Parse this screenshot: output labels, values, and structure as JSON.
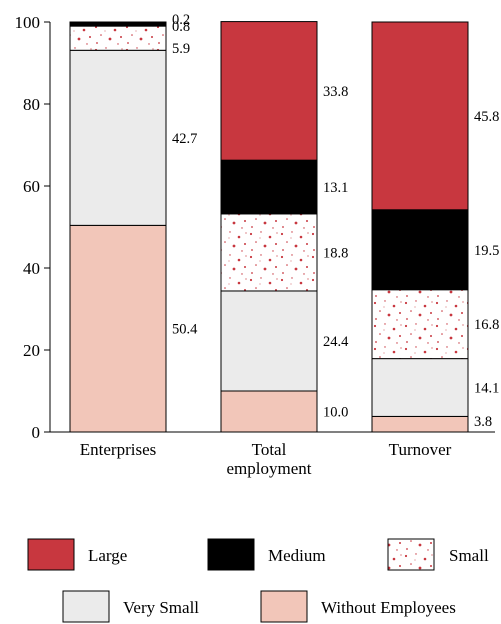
{
  "chart_data": {
    "type": "bar",
    "stacked": true,
    "categories": [
      "Enterprises",
      "Total employment",
      "Turnover"
    ],
    "series": [
      {
        "name": "Without Employees",
        "values": [
          50.4,
          10.0,
          3.8
        ]
      },
      {
        "name": "Very Small",
        "values": [
          42.7,
          24.4,
          14.1
        ]
      },
      {
        "name": "Small",
        "values": [
          5.9,
          18.8,
          16.8
        ]
      },
      {
        "name": "Medium",
        "values": [
          0.8,
          13.1,
          19.5
        ]
      },
      {
        "name": "Large",
        "values": [
          0.2,
          33.8,
          45.8
        ]
      }
    ],
    "ylim": [
      0,
      100
    ],
    "yticks": [
      "0",
      "20",
      "40",
      "60",
      "80",
      "100"
    ],
    "grid": false,
    "legend_position": "bottom",
    "legend_order": [
      "Large",
      "Medium",
      "Small",
      "Very Small",
      "Without Employees"
    ],
    "colors": {
      "Large": "#c8373f",
      "Medium": "#000000",
      "Small": "#ffffff",
      "Small_dots": "#c8373f",
      "Very Small": "#ebebeb",
      "Without Employees": "#f2c6b9"
    },
    "labels": [
      [
        "50.4",
        "42.7",
        "5.9",
        "0.8",
        "0.2"
      ],
      [
        "10.0",
        "24.4",
        "18.8",
        "13.1",
        "33.8"
      ],
      [
        "3.8",
        "14.1",
        "16.8",
        "19.5",
        "45.8"
      ]
    ],
    "category_labels": [
      [
        "Enterprises"
      ],
      [
        "Total",
        "employment"
      ],
      [
        "Turnover"
      ]
    ]
  }
}
